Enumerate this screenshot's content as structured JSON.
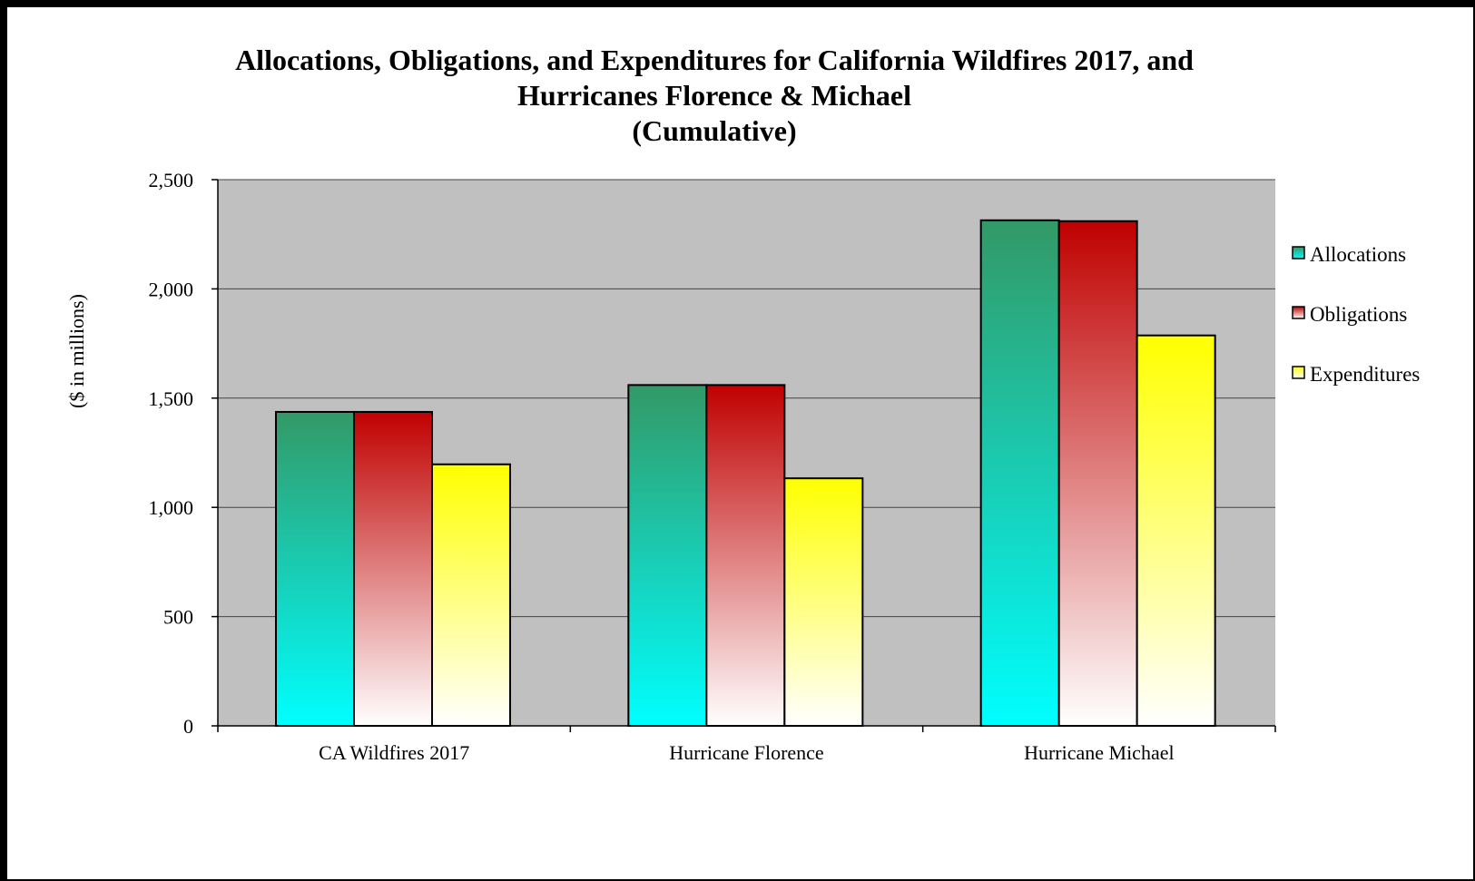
{
  "chart_data": {
    "type": "bar",
    "title_lines": [
      "Allocations, Obligations, and Expenditures for California Wildfires 2017, and",
      "Hurricanes Florence & Michael",
      "(Cumulative)"
    ],
    "ylabel": "($ in millions)",
    "xlabel": "",
    "ylim": [
      0,
      2500
    ],
    "yticks": [
      0,
      500,
      1000,
      1500,
      2000,
      2500
    ],
    "ytick_labels": [
      "0",
      "500",
      "1,000",
      "1,500",
      "2,000",
      "2,500"
    ],
    "categories": [
      "CA Wildfires 2017",
      "Hurricane Florence",
      "Hurricane Michael"
    ],
    "series": [
      {
        "name": "Allocations",
        "values": [
          1437,
          1560,
          2314
        ],
        "color_top": "#339966",
        "color_bottom": "#00ffff"
      },
      {
        "name": "Obligations",
        "values": [
          1437,
          1560,
          2310
        ],
        "color_top": "#c00000",
        "color_bottom": "#ffffff"
      },
      {
        "name": "Expenditures",
        "values": [
          1197,
          1133,
          1787
        ],
        "color_top": "#ffff00",
        "color_bottom": "#ffffff"
      }
    ],
    "grid": true,
    "plot_background": "#c0c0c0",
    "legend_position": "right"
  }
}
